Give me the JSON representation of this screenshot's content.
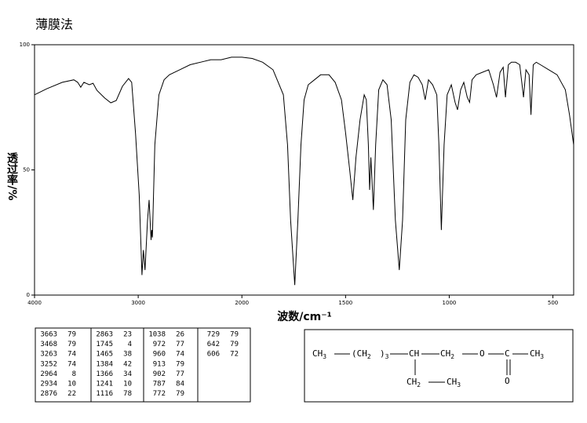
{
  "chart_data": {
    "type": "line",
    "title": "薄膜法",
    "xlabel": "波数/cm⁻¹",
    "ylabel": "透过率/%",
    "xlim": [
      4000,
      400
    ],
    "ylim": [
      0,
      100
    ],
    "xticks": [
      4000,
      3000,
      2000,
      1500,
      1000,
      500
    ],
    "yticks": [
      0,
      50,
      100
    ],
    "xscale_break": 2000,
    "xscale_factor": 2,
    "grid": false,
    "series": [
      {
        "color": "#000000",
        "x": [
          4000,
          3881,
          3732,
          3621,
          3584,
          3554,
          3524,
          3472,
          3435,
          3398,
          3323,
          3264,
          3212,
          3152,
          3093,
          3063,
          3026,
          2990,
          2964,
          2950,
          2934,
          2910,
          2895,
          2876,
          2870,
          2863,
          2840,
          2800,
          2750,
          2700,
          2600,
          2500,
          2400,
          2300,
          2200,
          2100,
          2000,
          1950,
          1900,
          1850,
          1800,
          1780,
          1765,
          1745,
          1730,
          1715,
          1700,
          1680,
          1650,
          1620,
          1580,
          1550,
          1520,
          1500,
          1480,
          1465,
          1450,
          1430,
          1410,
          1400,
          1390,
          1384,
          1378,
          1366,
          1355,
          1340,
          1320,
          1300,
          1280,
          1260,
          1241,
          1225,
          1210,
          1190,
          1170,
          1150,
          1130,
          1116,
          1100,
          1080,
          1060,
          1050,
          1038,
          1025,
          1010,
          990,
          972,
          960,
          945,
          930,
          913,
          902,
          890,
          870,
          840,
          810,
          787,
          772,
          755,
          740,
          729,
          715,
          700,
          680,
          660,
          642,
          630,
          615,
          606,
          595,
          580,
          560,
          520,
          480,
          440,
          420,
          400
        ],
        "values": [
          80,
          82.4,
          85,
          86,
          85,
          83,
          85,
          84,
          84.6,
          81.8,
          78.7,
          76.8,
          77.7,
          83.4,
          86.5,
          85,
          64.6,
          40,
          8,
          18,
          10,
          30,
          38,
          22,
          26,
          23,
          60,
          80,
          86,
          88,
          90,
          92,
          93,
          94,
          94,
          95,
          95,
          94.5,
          93,
          90,
          80,
          60,
          30,
          4,
          30,
          60,
          78,
          84,
          86,
          88,
          88,
          85,
          78,
          65,
          50,
          38,
          55,
          70,
          80,
          78,
          60,
          42,
          55,
          34,
          60,
          82,
          86,
          84,
          70,
          30,
          10,
          30,
          70,
          85,
          88,
          87,
          84,
          78,
          86,
          84,
          80,
          60,
          26,
          60,
          80,
          84,
          77,
          74,
          82,
          85,
          79,
          77,
          86,
          88,
          89,
          90,
          84,
          79,
          89,
          91,
          79,
          92,
          93,
          93,
          92,
          79,
          90,
          88,
          72,
          92,
          93,
          92,
          90,
          88,
          82,
          72,
          60
        ]
      }
    ]
  },
  "peak_table": [
    [
      [
        3663,
        79
      ],
      [
        3468,
        79
      ],
      [
        3263,
        74
      ],
      [
        3252,
        74
      ],
      [
        2964,
        8
      ],
      [
        2934,
        10
      ],
      [
        2876,
        22
      ]
    ],
    [
      [
        2863,
        23
      ],
      [
        1745,
        4
      ],
      [
        1465,
        38
      ],
      [
        1384,
        42
      ],
      [
        1366,
        34
      ],
      [
        1241,
        10
      ],
      [
        1116,
        78
      ]
    ],
    [
      [
        1038,
        26
      ],
      [
        972,
        77
      ],
      [
        960,
        74
      ],
      [
        913,
        79
      ],
      [
        902,
        77
      ],
      [
        787,
        84
      ],
      [
        772,
        79
      ]
    ],
    [
      [
        729,
        79
      ],
      [
        642,
        79
      ],
      [
        606,
        72
      ]
    ]
  ],
  "structure": {
    "atoms": [
      {
        "label": "CH",
        "sub": "3"
      },
      {
        "label": "(CH",
        "sub": "2"
      },
      {
        "label": ")",
        "sub": "3"
      },
      {
        "label": "CH"
      },
      {
        "label": "CH",
        "sub": "2"
      },
      {
        "label": "O"
      },
      {
        "label": "C"
      },
      {
        "label": "CH",
        "sub": "3"
      },
      {
        "label": "CH",
        "sub": "2"
      },
      {
        "label": "CH",
        "sub": "3"
      },
      {
        "label": "O"
      }
    ]
  }
}
